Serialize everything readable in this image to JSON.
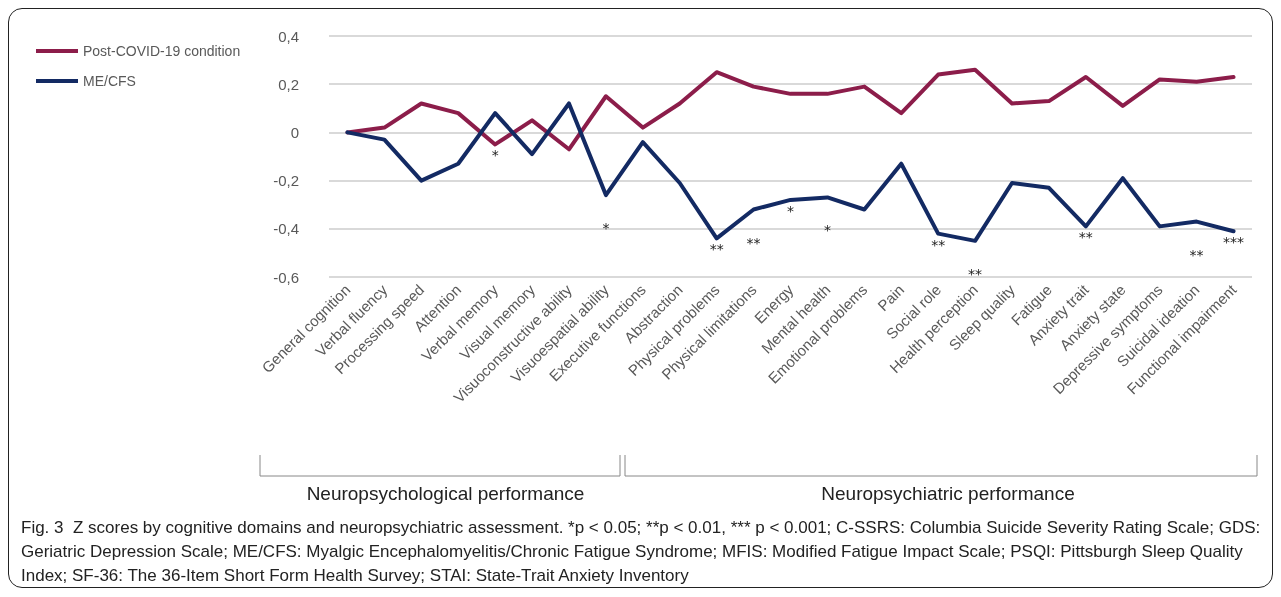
{
  "chart_data": {
    "type": "line",
    "categories": [
      "General cognition",
      "Verbal fluency",
      "Processing speed",
      "Attention",
      "Verbal memory",
      "Visual memory",
      "Visuoconstructive ability",
      "Visuoespatial ability",
      "Executive functions",
      "Abstraction",
      "Physical problems",
      "Physical limitations",
      "Energy",
      "Mental health",
      "Emotional problems",
      "Pain",
      "Social role",
      "Health perception",
      "Sleep quality",
      "Fatigue",
      "Anxiety trait",
      "Anxiety state",
      "Depressive symptoms",
      "Suicidal ideation",
      "Functional impairment"
    ],
    "series": [
      {
        "name": "Post-COVID-19 condition",
        "color": "#8c1d4a",
        "values": [
          0,
          0.02,
          0.12,
          0.08,
          -0.05,
          0.05,
          -0.07,
          0.15,
          0.02,
          0.12,
          0.25,
          0.19,
          0.16,
          0.16,
          0.19,
          0.08,
          0.24,
          0.26,
          0.12,
          0.13,
          0.23,
          0.11,
          0.22,
          0.21,
          0.23
        ]
      },
      {
        "name": "ME/CFS",
        "color": "#132a63",
        "values": [
          0,
          -0.03,
          -0.2,
          -0.13,
          0.08,
          -0.09,
          0.12,
          -0.26,
          -0.04,
          -0.21,
          -0.44,
          -0.32,
          -0.28,
          -0.27,
          -0.32,
          -0.13,
          -0.42,
          -0.45,
          -0.21,
          -0.23,
          -0.39,
          -0.19,
          -0.39,
          -0.37,
          -0.41
        ]
      }
    ],
    "ylim": [
      -0.6,
      0.4
    ],
    "yticks": [
      {
        "value": -0.6,
        "label": "-0,6"
      },
      {
        "value": -0.4,
        "label": "-0,4"
      },
      {
        "value": -0.2,
        "label": "-0,2"
      },
      {
        "value": 0,
        "label": "0"
      },
      {
        "value": 0.2,
        "label": "0,2"
      },
      {
        "value": 0.4,
        "label": "0,4"
      }
    ],
    "grid": "y",
    "legend": "top left",
    "marker": "none",
    "line_style": "solid",
    "annotations": [
      {
        "text": "*",
        "x": "Verbal memory",
        "y": -0.05
      },
      {
        "text": "*",
        "x": "Visuoespatial ability",
        "y": -0.26
      },
      {
        "text": "**",
        "x": "Physical problems",
        "y": -0.44
      },
      {
        "text": "**",
        "x": "Physical limitations",
        "y": -0.32
      },
      {
        "text": "*",
        "x": "Energy",
        "y": -0.28
      },
      {
        "text": "*",
        "x": "Mental health",
        "y": -0.27
      },
      {
        "text": "**",
        "x": "Social role",
        "y": -0.42
      },
      {
        "text": "**",
        "x": "Health perception",
        "y": -0.45
      },
      {
        "text": "**",
        "x": "Anxiety trait",
        "y": -0.39
      },
      {
        "text": "**",
        "x": "Suicidal ideation",
        "y": -0.37
      },
      {
        "text": "***",
        "x": "Functional impairment",
        "y": -0.41
      },
      "Neuropsychological performance",
      "Neuropsychiatric performance",
      "Fig. 3  Z scores by cognitive domains and neuropsychiatric assessment. *p < 0.05; **p < 0.01, *** p < 0.001; C-SSRS: Columbia Suicide Severity Rating Scale; GDS: Geriatric Depression Scale; ME/CFS: Myalgic Encephalomyelitis/Chronic Fatigue Syndrome; MFIS: Modified Fatigue Impact Scale; PSQI: Pittsburgh Sleep Quality Index; SF-36: The 36-Item Short Form Health Survey; STAI: State-Trait Anxiety Inventory"
    ]
  }
}
